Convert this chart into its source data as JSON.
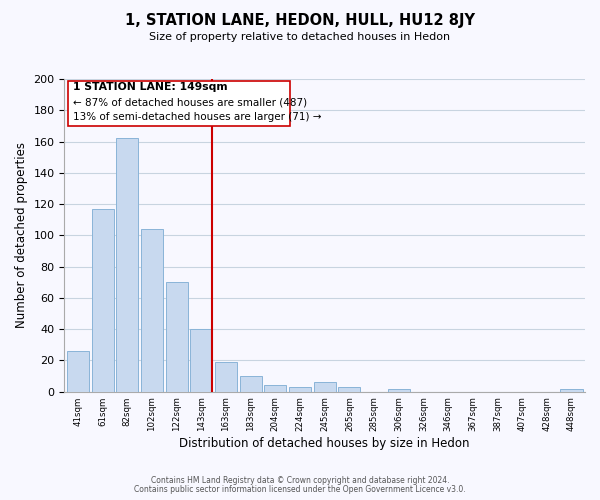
{
  "title": "1, STATION LANE, HEDON, HULL, HU12 8JY",
  "subtitle": "Size of property relative to detached houses in Hedon",
  "xlabel": "Distribution of detached houses by size in Hedon",
  "ylabel": "Number of detached properties",
  "bar_labels": [
    "41sqm",
    "61sqm",
    "82sqm",
    "102sqm",
    "122sqm",
    "143sqm",
    "163sqm",
    "183sqm",
    "204sqm",
    "224sqm",
    "245sqm",
    "265sqm",
    "285sqm",
    "306sqm",
    "326sqm",
    "346sqm",
    "367sqm",
    "387sqm",
    "407sqm",
    "428sqm",
    "448sqm"
  ],
  "bar_heights": [
    26,
    117,
    162,
    104,
    70,
    40,
    19,
    10,
    4,
    3,
    6,
    3,
    0,
    2,
    0,
    0,
    0,
    0,
    0,
    0,
    2
  ],
  "bar_color": "#c8d9ef",
  "bar_edge_color": "#8ab4d8",
  "vline_color": "#cc0000",
  "annotation_title": "1 STATION LANE: 149sqm",
  "annotation_line1": "← 87% of detached houses are smaller (487)",
  "annotation_line2": "13% of semi-detached houses are larger (71) →",
  "annotation_box_color": "#cc0000",
  "ylim": [
    0,
    200
  ],
  "yticks": [
    0,
    20,
    40,
    60,
    80,
    100,
    120,
    140,
    160,
    180,
    200
  ],
  "footer1": "Contains HM Land Registry data © Crown copyright and database right 2024.",
  "footer2": "Contains public sector information licensed under the Open Government Licence v3.0.",
  "bg_color": "#f8f8ff",
  "grid_color": "#c8d4e0"
}
